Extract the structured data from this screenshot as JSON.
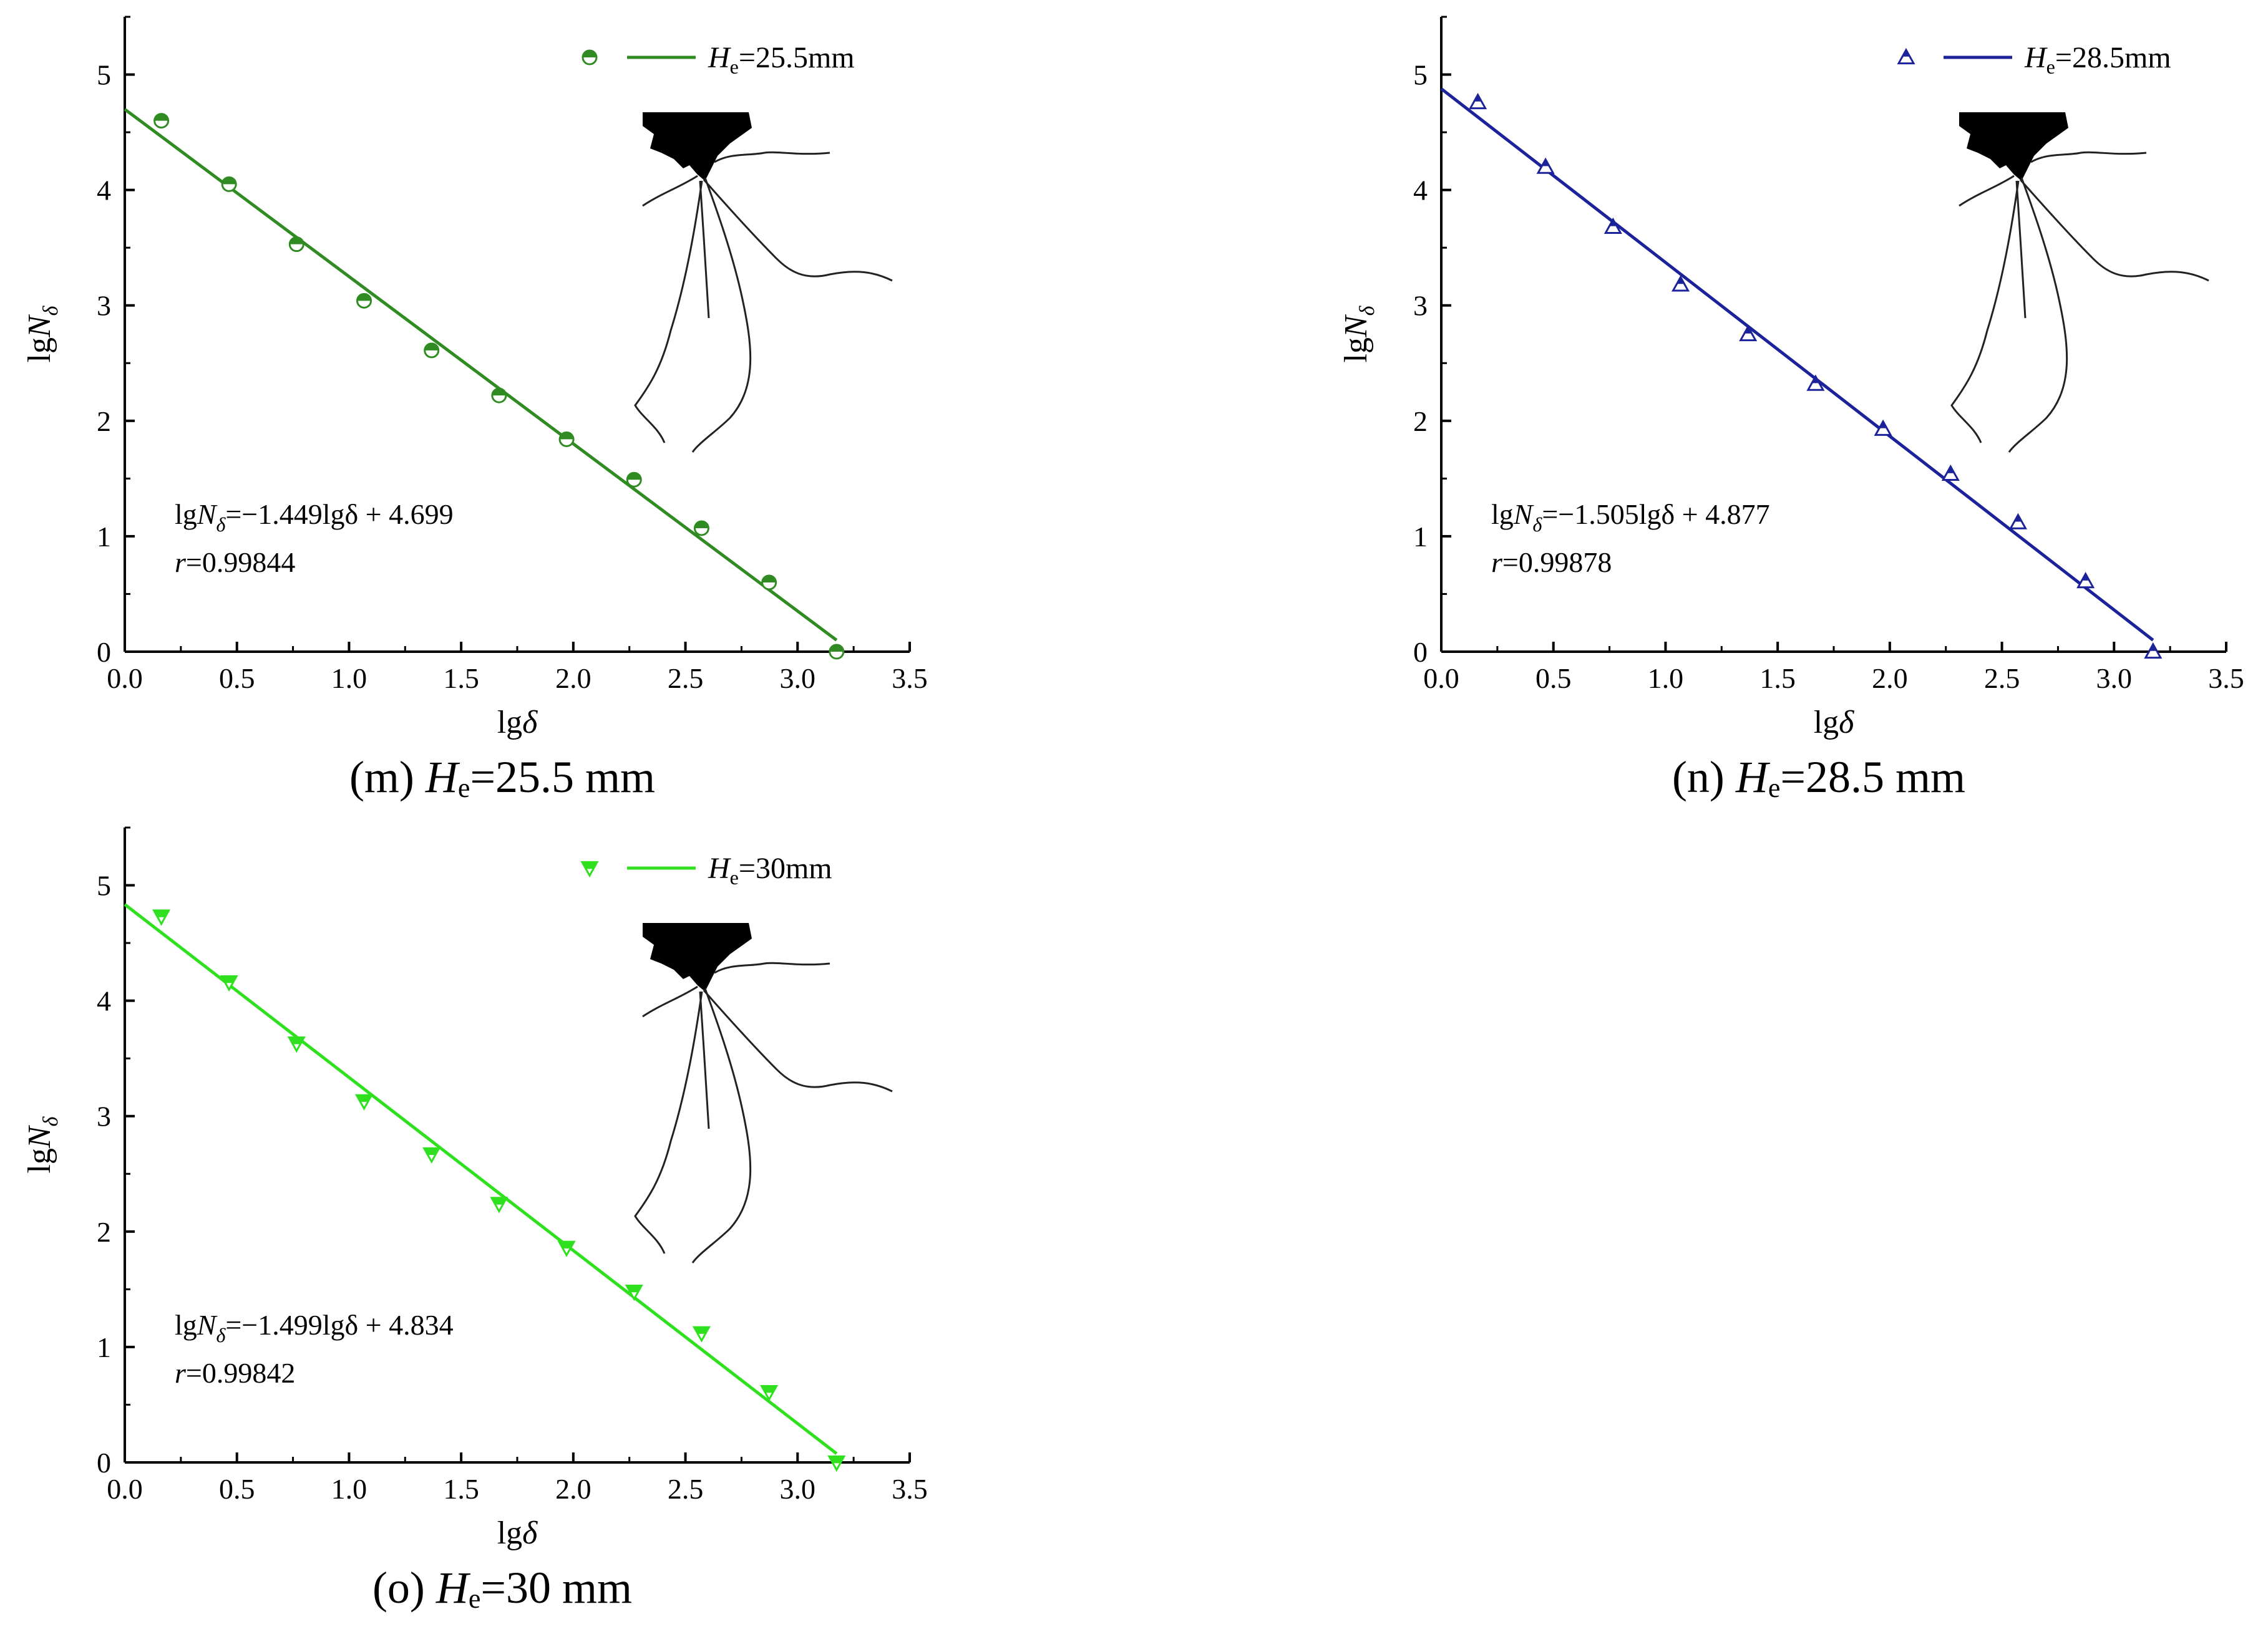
{
  "chart_data": [
    {
      "type": "scatter",
      "panel": "m",
      "caption": {
        "prefix": "(m) ",
        "symbol": "H",
        "sub": "e",
        "suffix": "=25.5 mm"
      },
      "legend": {
        "symbol": "H",
        "sub": "e",
        "value": "=25.5mm",
        "placement": "top-right"
      },
      "color": "#2f8b22",
      "marker": "half-filled-circle",
      "xlabel": "lgδ",
      "ylabel": "lgN_δ",
      "xlim": [
        0,
        3.5
      ],
      "ylim": [
        0,
        5.5
      ],
      "xticks": [
        "0.0",
        "0.5",
        "1.0",
        "1.5",
        "2.0",
        "2.5",
        "3.0",
        "3.5"
      ],
      "yticks": [
        "0",
        "1",
        "2",
        "3",
        "4",
        "5"
      ],
      "x": [
        0.163,
        0.465,
        0.766,
        1.067,
        1.368,
        1.669,
        1.97,
        2.271,
        2.572,
        2.873,
        3.174
      ],
      "y": [
        4.6,
        4.05,
        3.53,
        3.04,
        2.61,
        2.22,
        1.84,
        1.49,
        1.07,
        0.6,
        0.0
      ],
      "fit": {
        "slope": -1.449,
        "intercept": 4.699,
        "x_range": [
          0,
          3.174
        ]
      },
      "equation": {
        "lhs": "lgN",
        "sub": "δ",
        "rhs": "=−1.449lgδ + 4.699"
      },
      "r_text": {
        "sym": "r",
        "value": "=0.99844"
      }
    },
    {
      "type": "scatter",
      "panel": "n",
      "caption": {
        "prefix": "(n) ",
        "symbol": "H",
        "sub": "e",
        "suffix": "=28.5 mm"
      },
      "legend": {
        "symbol": "H",
        "sub": "e",
        "value": "=28.5mm",
        "placement": "top-right"
      },
      "color": "#1c239a",
      "marker": "half-filled-triangle-up",
      "xlabel": "lgδ",
      "ylabel": "lgN_δ",
      "xlim": [
        0,
        3.5
      ],
      "ylim": [
        0,
        5.5
      ],
      "xticks": [
        "0.0",
        "0.5",
        "1.0",
        "1.5",
        "2.0",
        "2.5",
        "3.0",
        "3.5"
      ],
      "yticks": [
        "0",
        "1",
        "2",
        "3",
        "4",
        "5"
      ],
      "x": [
        0.163,
        0.465,
        0.766,
        1.067,
        1.368,
        1.669,
        1.97,
        2.271,
        2.572,
        2.873,
        3.174
      ],
      "y": [
        4.76,
        4.2,
        3.68,
        3.18,
        2.75,
        2.32,
        1.93,
        1.54,
        1.12,
        0.61,
        0.0
      ],
      "fit": {
        "slope": -1.505,
        "intercept": 4.877,
        "x_range": [
          0,
          3.174
        ]
      },
      "equation": {
        "lhs": "lgN",
        "sub": "δ",
        "rhs": "=−1.505lgδ + 4.877"
      },
      "r_text": {
        "sym": "r",
        "value": "=0.99878"
      }
    },
    {
      "type": "scatter",
      "panel": "o",
      "caption": {
        "prefix": "(o) ",
        "symbol": "H",
        "sub": "e",
        "suffix": "=30 mm"
      },
      "legend": {
        "symbol": "H",
        "sub": "e",
        "value": "=30mm",
        "placement": "top-right"
      },
      "color": "#2ee01e",
      "marker": "half-filled-triangle-down",
      "xlabel": "lgδ",
      "ylabel": "lgN_δ",
      "xlim": [
        0,
        3.5
      ],
      "ylim": [
        0,
        5.5
      ],
      "xticks": [
        "0.0",
        "0.5",
        "1.0",
        "1.5",
        "2.0",
        "2.5",
        "3.0",
        "3.5"
      ],
      "yticks": [
        "0",
        "1",
        "2",
        "3",
        "4",
        "5"
      ],
      "x": [
        0.163,
        0.465,
        0.766,
        1.067,
        1.368,
        1.669,
        1.97,
        2.271,
        2.572,
        2.873,
        3.174
      ],
      "y": [
        4.73,
        4.16,
        3.63,
        3.13,
        2.67,
        2.24,
        1.86,
        1.48,
        1.12,
        0.61,
        0.0
      ],
      "fit": {
        "slope": -1.499,
        "intercept": 4.834,
        "x_range": [
          0,
          3.174
        ]
      },
      "equation": {
        "lhs": "lgN",
        "sub": "δ",
        "rhs": "=−1.499lgδ + 4.834"
      },
      "r_text": {
        "sym": "r",
        "value": "=0.99842"
      }
    }
  ]
}
